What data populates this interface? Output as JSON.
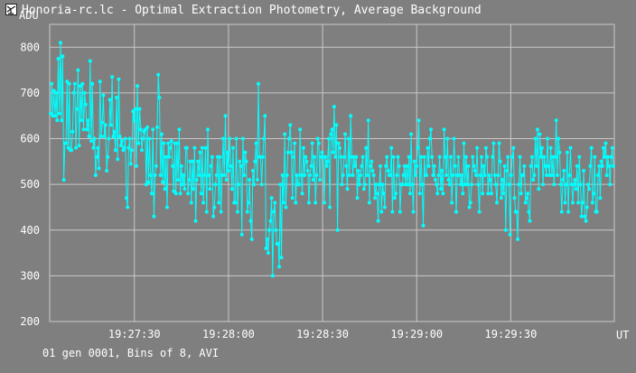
{
  "window": {
    "title": "Honoria-rc.lc - Optimal Extraction Photometry, Average Background",
    "icon": "telescope-app-icon"
  },
  "footer": {
    "status": "01 gen 0001, Bins of 8, AVI"
  },
  "colors": {
    "background": "#7f7f7f",
    "grid": "#c8c8c8",
    "series": "#00ffff",
    "text": "#ffffff"
  },
  "chart_data": {
    "type": "line",
    "ylabel": "ADU",
    "xlabel": "UT",
    "ylim": [
      200,
      850
    ],
    "yticks": [
      200,
      300,
      400,
      500,
      600,
      700,
      800
    ],
    "xlim_seconds": [
      0,
      300
    ],
    "xticks": [
      {
        "label": "19:27:30",
        "t": 45
      },
      {
        "label": "19:28:00",
        "t": 95
      },
      {
        "label": "19:28:30",
        "t": 145
      },
      {
        "label": "19:29:00",
        "t": 195
      },
      {
        "label": "19:29:30",
        "t": 245
      }
    ],
    "grid": true,
    "series": [
      {
        "values": [
          655,
          720,
          650,
          705,
          650,
          700,
          640,
          775,
          655,
          810,
          640,
          780,
          510,
          590,
          590,
          725,
          580,
          720,
          575,
          575,
          615,
          700,
          720,
          580,
          665,
          750,
          585,
          715,
          640,
          720,
          620,
          700,
          675,
          620,
          640,
          605,
          770,
          595,
          720,
          580,
          600,
          520,
          560,
          580,
          535,
          725,
          605,
          635,
          695,
          605,
          630,
          530,
          560,
          600,
          685,
          630,
          735,
          605,
          615,
          575,
          690,
          555,
          730,
          605,
          585,
          595,
          575,
          580,
          600,
          470,
          450,
          580,
          600,
          545,
          575,
          660,
          640,
          665,
          540,
          715,
          590,
          665,
          620,
          575,
          600,
          615,
          620,
          500,
          625,
          505,
          600,
          520,
          480,
          620,
          430,
          520,
          540,
          625,
          740,
          690,
          520,
          610,
          505,
          590,
          490,
          560,
          450,
          590,
          560,
          580,
          595,
          540,
          485,
          590,
          480,
          590,
          510,
          620,
          480,
          540,
          500,
          520,
          490,
          580,
          580,
          480,
          510,
          550,
          460,
          550,
          490,
          580,
          420,
          510,
          550,
          520,
          570,
          480,
          580,
          460,
          520,
          580,
          440,
          620,
          520,
          490,
          540,
          560,
          430,
          450,
          500,
          520,
          560,
          460,
          560,
          440,
          520,
          600,
          520,
          650,
          510,
          570,
          530,
          600,
          540,
          490,
          580,
          460,
          460,
          600,
          440,
          500,
          550,
          540,
          390,
          600,
          520,
          570,
          550,
          440,
          460,
          510,
          420,
          380,
          530,
          500,
          550,
          590,
          510,
          720,
          560,
          560,
          500,
          560,
          600,
          650,
          360,
          380,
          350,
          400,
          420,
          470,
          300,
          440,
          460,
          400,
          370,
          370,
          320,
          500,
          340,
          520,
          460,
          610,
          450,
          520,
          570,
          600,
          630,
          570,
          470,
          560,
          590,
          460,
          520,
          500,
          500,
          620,
          520,
          480,
          580,
          520,
          560,
          550,
          530,
          460,
          520,
          540,
          590,
          510,
          560,
          460,
          520,
          600,
          590,
          510,
          560,
          570,
          560,
          460,
          560,
          540,
          550,
          600,
          450,
          610,
          620,
          570,
          670,
          560,
          630,
          400,
          590,
          580,
          560,
          500,
          520,
          560,
          610,
          540,
          490,
          600,
          520,
          650,
          560,
          520,
          560,
          540,
          560,
          470,
          530,
          500,
          520,
          540,
          560,
          490,
          500,
          580,
          520,
          640,
          460,
          540,
          550,
          530,
          520,
          470,
          500,
          480,
          420,
          500,
          540,
          440,
          500,
          480,
          450,
          540,
          560,
          530,
          520,
          520,
          580,
          440,
          560,
          470,
          480,
          520,
          560,
          540,
          440,
          500,
          500,
          520,
          540,
          500,
          540,
          500,
          560,
          480,
          610,
          500,
          440,
          550,
          520,
          540,
          580,
          640,
          480,
          560,
          500,
          410,
          560,
          520,
          520,
          580,
          540,
          600,
          620,
          560,
          520,
          540,
          510,
          500,
          480,
          520,
          560,
          490,
          530,
          480,
          620,
          560,
          520,
          600,
          510,
          500,
          560,
          460,
          520,
          600,
          540,
          440,
          520,
          560,
          520,
          500,
          520,
          480,
          590,
          500,
          560,
          500,
          540,
          450,
          460,
          500,
          560,
          540,
          530,
          520,
          580,
          500,
          440,
          520,
          560,
          480,
          540,
          520,
          580,
          560,
          480,
          520,
          510,
          480,
          560,
          590,
          520,
          500,
          460,
          520,
          590,
          550,
          470,
          510,
          480,
          540,
          400,
          530,
          560,
          500,
          390,
          520,
          560,
          580,
          470,
          440,
          440,
          380,
          500,
          560,
          480,
          520,
          520,
          540,
          460,
          470,
          480,
          440,
          420,
          540,
          560,
          510,
          520,
          600,
          540,
          620,
          490,
          610,
          560,
          580,
          500,
          560,
          540,
          520,
          600,
          540,
          520,
          580,
          520,
          560,
          500,
          560,
          640,
          520,
          600,
          570,
          500,
          440,
          510,
          530,
          460,
          500,
          570,
          440,
          520,
          580,
          500,
          460,
          500,
          510,
          490,
          540,
          460,
          560,
          500,
          430,
          460,
          530,
          430,
          420,
          450,
          500,
          490,
          540,
          580,
          460,
          480,
          560,
          440,
          440,
          520,
          540,
          470,
          550,
          540,
          580,
          560,
          590,
          520,
          560,
          540,
          500,
          560,
          580,
          540
        ]
      }
    ]
  }
}
